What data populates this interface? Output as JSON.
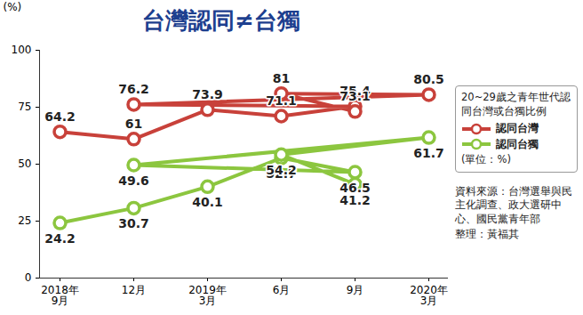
{
  "chart_data": {
    "type": "line",
    "title": "台灣認同≠台獨",
    "y_label": "(%)",
    "legend_title": "20~29歲之青年世代認同台灣或台獨比例",
    "legend_note": "(單位：%)",
    "source": "資料來源：台灣選舉與民主化調查、政大選研中心、國民黨青年部",
    "credit": "整理：黃福其",
    "categories": [
      "2018年\n9月",
      "12月",
      "2019年\n3月",
      "6月",
      "9月",
      "12月",
      "2020年\n3月",
      "6月",
      "9月"
    ],
    "series": [
      {
        "name": "認同台灣",
        "color": "#c8413a",
        "marker": "circle",
        "values": [
          64.2,
          61,
          73.9,
          71.1,
          75.4,
          76.2,
          80.5,
          81,
          73.1
        ]
      },
      {
        "name": "認同台獨",
        "color": "#8cc63f",
        "marker": "circle",
        "values": [
          24.2,
          30.7,
          40.1,
          52.7,
          46.5,
          49.6,
          61.7,
          54.2,
          41.2
        ]
      }
    ],
    "ylim": [
      0,
      100
    ],
    "yticks": [
      0,
      25,
      50,
      75,
      100
    ],
    "grid": false,
    "data_labels": true,
    "legend": "right"
  }
}
